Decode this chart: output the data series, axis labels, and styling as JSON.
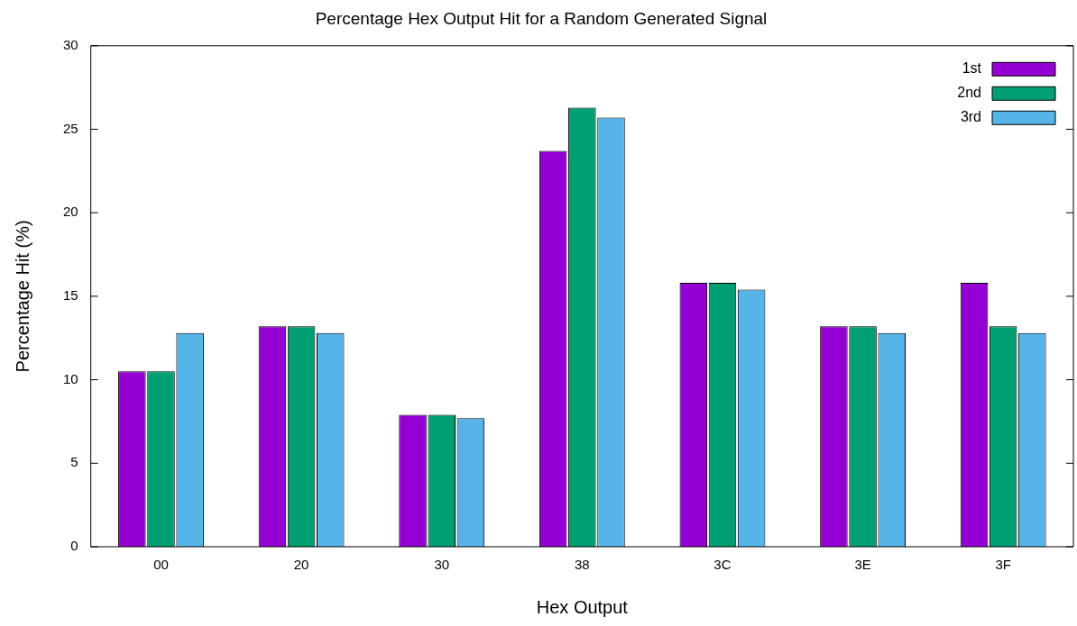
{
  "chart_data": {
    "type": "bar",
    "title": "Percentage Hex Output Hit for a Random Generated Signal",
    "xlabel": "Hex Output",
    "ylabel": "Percentage Hit (%)",
    "categories": [
      "00",
      "20",
      "30",
      "38",
      "3C",
      "3E",
      "3F"
    ],
    "series": [
      {
        "name": "1st",
        "color": "#9400d3",
        "values": [
          10.5,
          13.2,
          7.9,
          23.7,
          15.8,
          13.2,
          15.8
        ]
      },
      {
        "name": "2nd",
        "color": "#009e73",
        "values": [
          10.5,
          13.2,
          7.9,
          26.3,
          15.8,
          13.2,
          13.2
        ]
      },
      {
        "name": "3rd",
        "color": "#56b4e9",
        "values": [
          12.8,
          12.8,
          7.7,
          25.7,
          15.4,
          12.8,
          12.8
        ]
      }
    ],
    "ylim": [
      0,
      30
    ],
    "yticks": [
      0,
      5,
      10,
      15,
      20,
      25,
      30
    ],
    "grid": false,
    "legend": "top right"
  }
}
